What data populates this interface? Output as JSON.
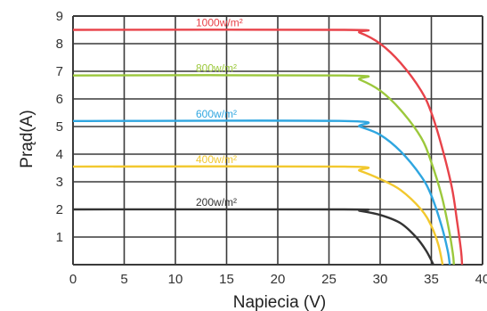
{
  "chart_data": {
    "type": "line",
    "title": "",
    "xlabel": "Napiecia (V)",
    "ylabel": "Prąd(A)",
    "xlim": [
      0,
      40
    ],
    "ylim": [
      0,
      9
    ],
    "xticks": [
      "0",
      "5",
      "10",
      "15",
      "20",
      "25",
      "30",
      "35",
      "40"
    ],
    "yticks": [
      "1",
      "2",
      "3",
      "4",
      "5",
      "6",
      "7",
      "8",
      "9"
    ],
    "grid": true,
    "series": [
      {
        "name": "1000w/m²",
        "color": "#e8434a",
        "points": [
          [
            0,
            8.5
          ],
          [
            26.5,
            8.5
          ],
          [
            28,
            8.4
          ],
          [
            30,
            8.0
          ],
          [
            32,
            7.3
          ],
          [
            34,
            6.3
          ],
          [
            35,
            5.5
          ],
          [
            36,
            4.3
          ],
          [
            37,
            2.8
          ],
          [
            37.5,
            1.6
          ],
          [
            37.9,
            0.5
          ],
          [
            38,
            0
          ]
        ]
      },
      {
        "name": "800w/m²",
        "color": "#9cc83c",
        "points": [
          [
            0,
            6.85
          ],
          [
            26.5,
            6.85
          ],
          [
            28,
            6.7
          ],
          [
            30,
            6.3
          ],
          [
            32,
            5.6
          ],
          [
            34,
            4.6
          ],
          [
            35,
            3.7
          ],
          [
            36,
            2.5
          ],
          [
            36.7,
            1.3
          ],
          [
            37.1,
            0.4
          ],
          [
            37.2,
            0
          ]
        ]
      },
      {
        "name": "600w/m²",
        "color": "#2fa6e0",
        "points": [
          [
            0,
            5.2
          ],
          [
            26.5,
            5.2
          ],
          [
            28,
            5.0
          ],
          [
            30,
            4.7
          ],
          [
            32,
            4.1
          ],
          [
            34,
            3.2
          ],
          [
            35,
            2.5
          ],
          [
            36,
            1.4
          ],
          [
            36.6,
            0.5
          ],
          [
            36.8,
            0
          ]
        ]
      },
      {
        "name": "400w/m²",
        "color": "#f2c82e",
        "points": [
          [
            0,
            3.55
          ],
          [
            26.5,
            3.55
          ],
          [
            28,
            3.4
          ],
          [
            30,
            3.1
          ],
          [
            32,
            2.7
          ],
          [
            34,
            2.0
          ],
          [
            35,
            1.4
          ],
          [
            35.7,
            0.7
          ],
          [
            36.1,
            0
          ]
        ]
      },
      {
        "name": "200w/m²",
        "color": "#333333",
        "points": [
          [
            0,
            2.0
          ],
          [
            26.5,
            2.0
          ],
          [
            28,
            1.95
          ],
          [
            30,
            1.8
          ],
          [
            32,
            1.5
          ],
          [
            33.5,
            1.0
          ],
          [
            34.5,
            0.5
          ],
          [
            35.2,
            0
          ]
        ]
      }
    ]
  }
}
